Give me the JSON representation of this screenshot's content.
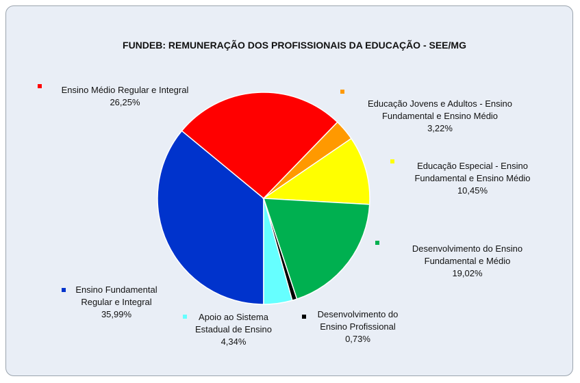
{
  "chart_data": {
    "type": "pie",
    "title": "FUNDEB: REMUNERAÇÃO DOS PROFISSIONAIS DA EDUCAÇÃO - SEE/MG",
    "categories": [
      "Ensino Fundamental Regular e Integral",
      "Ensino Médio Regular e Integral",
      "Educação Jovens e Adultos - Ensino Fundamental e Ensino Médio",
      "Educação Especial - Ensino Fundamental e Ensino Médio",
      "Desenvolvimento do Ensino Fundamental e Médio",
      "Desenvolvimento do Ensino Profissional",
      "Apoio ao Sistema Estadual de Ensino"
    ],
    "values": [
      35.99,
      26.25,
      3.22,
      10.45,
      19.02,
      0.73,
      4.34
    ],
    "value_labels": [
      "35,99%",
      "26,25%",
      "3,22%",
      "10,45%",
      "19,02%",
      "0,73%",
      "4,34%"
    ],
    "colors": [
      "#0033cc",
      "#ff0000",
      "#ff9900",
      "#ffff00",
      "#00b050",
      "#000000",
      "#66ffff"
    ]
  }
}
